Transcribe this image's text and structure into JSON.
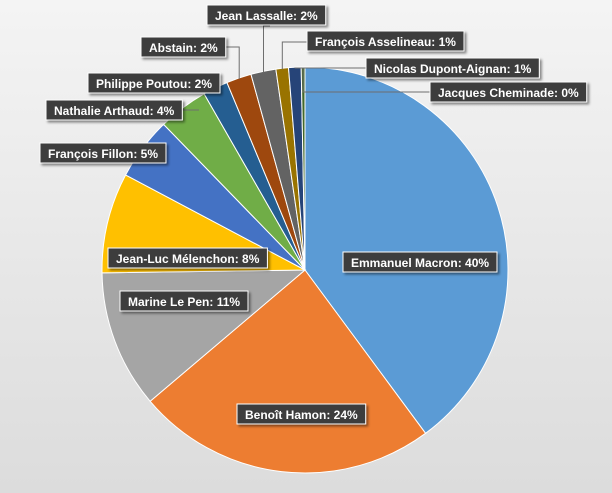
{
  "chart_data": {
    "type": "pie",
    "title": "",
    "start_angle_deg": 0,
    "direction": "clockwise",
    "slices": [
      {
        "label": "Emmanuel Macron",
        "value": 40,
        "display": "Emmanuel Macron: 40%",
        "color": "#5b9bd5"
      },
      {
        "label": "Benoît Hamon",
        "value": 24,
        "display": "Benoît Hamon: 24%",
        "color": "#ed7d31"
      },
      {
        "label": "Marine Le Pen",
        "value": 11,
        "display": "Marine Le Pen: 11%",
        "color": "#a5a5a5"
      },
      {
        "label": "Jean-Luc Mélenchon",
        "value": 8,
        "display": "Jean-Luc Mélenchon: 8%",
        "color": "#ffc000"
      },
      {
        "label": "François Fillon",
        "value": 5,
        "display": "François Fillon: 5%",
        "color": "#4472c4"
      },
      {
        "label": "Nathalie Arthaud",
        "value": 4,
        "display": "Nathalie Arthaud: 4%",
        "color": "#70ad47"
      },
      {
        "label": "Philippe Poutou",
        "value": 2,
        "display": "Philippe Poutou: 2%",
        "color": "#255e91"
      },
      {
        "label": "Abstain",
        "value": 2,
        "display": "Abstain: 2%",
        "color": "#9e480e"
      },
      {
        "label": "Jean Lassalle",
        "value": 2,
        "display": "Jean Lassalle: 2%",
        "color": "#636363"
      },
      {
        "label": "François Asselineau",
        "value": 1,
        "display": "François Asselineau: 1%",
        "color": "#997300"
      },
      {
        "label": "Nicolas Dupont-Aignan",
        "value": 1,
        "display": "Nicolas Dupont-Aignan: 1%",
        "color": "#264478"
      },
      {
        "label": "Jacques Cheminade",
        "value": 0.3,
        "display": "Jacques Cheminade: 0%",
        "color": "#43682b"
      }
    ]
  }
}
